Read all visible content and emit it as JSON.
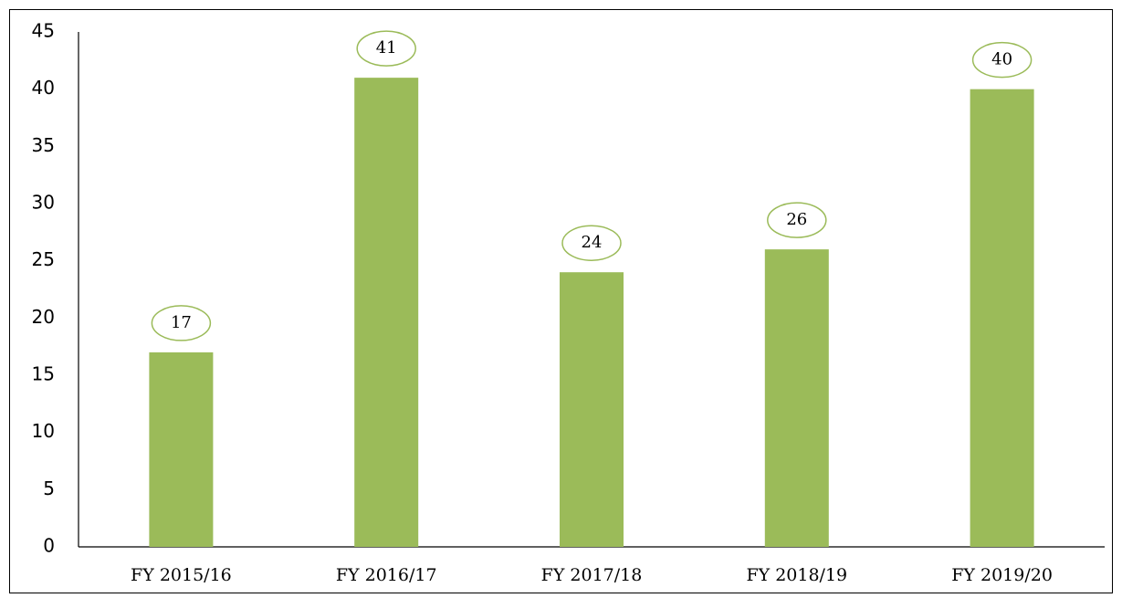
{
  "chart_data": {
    "type": "bar",
    "categories": [
      "FY 2015/16",
      "FY 2016/17",
      "FY 2017/18",
      "FY 2018/19",
      "FY 2019/20"
    ],
    "values": [
      17,
      41,
      24,
      26,
      40
    ],
    "color": "#9bbb59",
    "label_outline": "#9bbb59",
    "ylim": [
      0,
      45
    ],
    "yticks": [
      0,
      5,
      10,
      15,
      20,
      25,
      30,
      35,
      40,
      45
    ],
    "grid": false
  }
}
